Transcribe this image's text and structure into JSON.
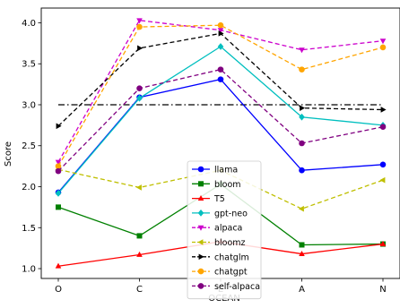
{
  "chart_data": {
    "type": "line",
    "categories": [
      "O",
      "C",
      "E",
      "A",
      "N"
    ],
    "xlabel": "OCEAN",
    "ylabel": "Score",
    "ylim": [
      0.88,
      4.18
    ],
    "yticks": [
      1.0,
      1.5,
      2.0,
      2.5,
      3.0,
      3.5,
      4.0
    ],
    "ytick_labels": [
      "1.0",
      "1.5",
      "2.0",
      "2.5",
      "3.0",
      "3.5",
      "4.0"
    ],
    "grid": false,
    "legend_position": "lower-center",
    "reference_line": {
      "value": 3.0,
      "color": "#000000",
      "style": "dashdot"
    },
    "series": [
      {
        "name": "llama",
        "color": "#0000ff",
        "marker": "circle",
        "dash": "solid",
        "values": [
          1.93,
          3.09,
          3.31,
          2.2,
          2.27
        ]
      },
      {
        "name": "bloom",
        "color": "#008000",
        "marker": "square",
        "dash": "solid",
        "values": [
          1.75,
          1.4,
          2.03,
          1.29,
          1.3
        ]
      },
      {
        "name": "T5",
        "color": "#ff0000",
        "marker": "triangle-up",
        "dash": "solid",
        "values": [
          1.03,
          1.17,
          1.33,
          1.18,
          1.3
        ]
      },
      {
        "name": "gpt-neo",
        "color": "#00bfbf",
        "marker": "diamond",
        "dash": "solid",
        "values": [
          1.92,
          3.08,
          3.71,
          2.85,
          2.75
        ]
      },
      {
        "name": "alpaca",
        "color": "#cc00cc",
        "marker": "triangle-down",
        "dash": "dashed",
        "values": [
          2.3,
          4.03,
          3.91,
          3.67,
          3.78
        ]
      },
      {
        "name": "bloomz",
        "color": "#bfbf00",
        "marker": "triangle-left",
        "dash": "dashed",
        "values": [
          2.21,
          1.99,
          2.2,
          1.73,
          2.08
        ]
      },
      {
        "name": "chatglm",
        "color": "#000000",
        "marker": "triangle-right",
        "dash": "dashed",
        "values": [
          2.74,
          3.69,
          3.87,
          2.96,
          2.94
        ]
      },
      {
        "name": "chatgpt",
        "color": "#ffa500",
        "marker": "circle",
        "dash": "dashed",
        "values": [
          2.25,
          3.95,
          3.97,
          3.43,
          3.7
        ]
      },
      {
        "name": "self-alpaca",
        "color": "#800080",
        "marker": "circle",
        "dash": "dashed",
        "values": [
          2.19,
          3.2,
          3.43,
          2.53,
          2.73
        ]
      }
    ]
  }
}
